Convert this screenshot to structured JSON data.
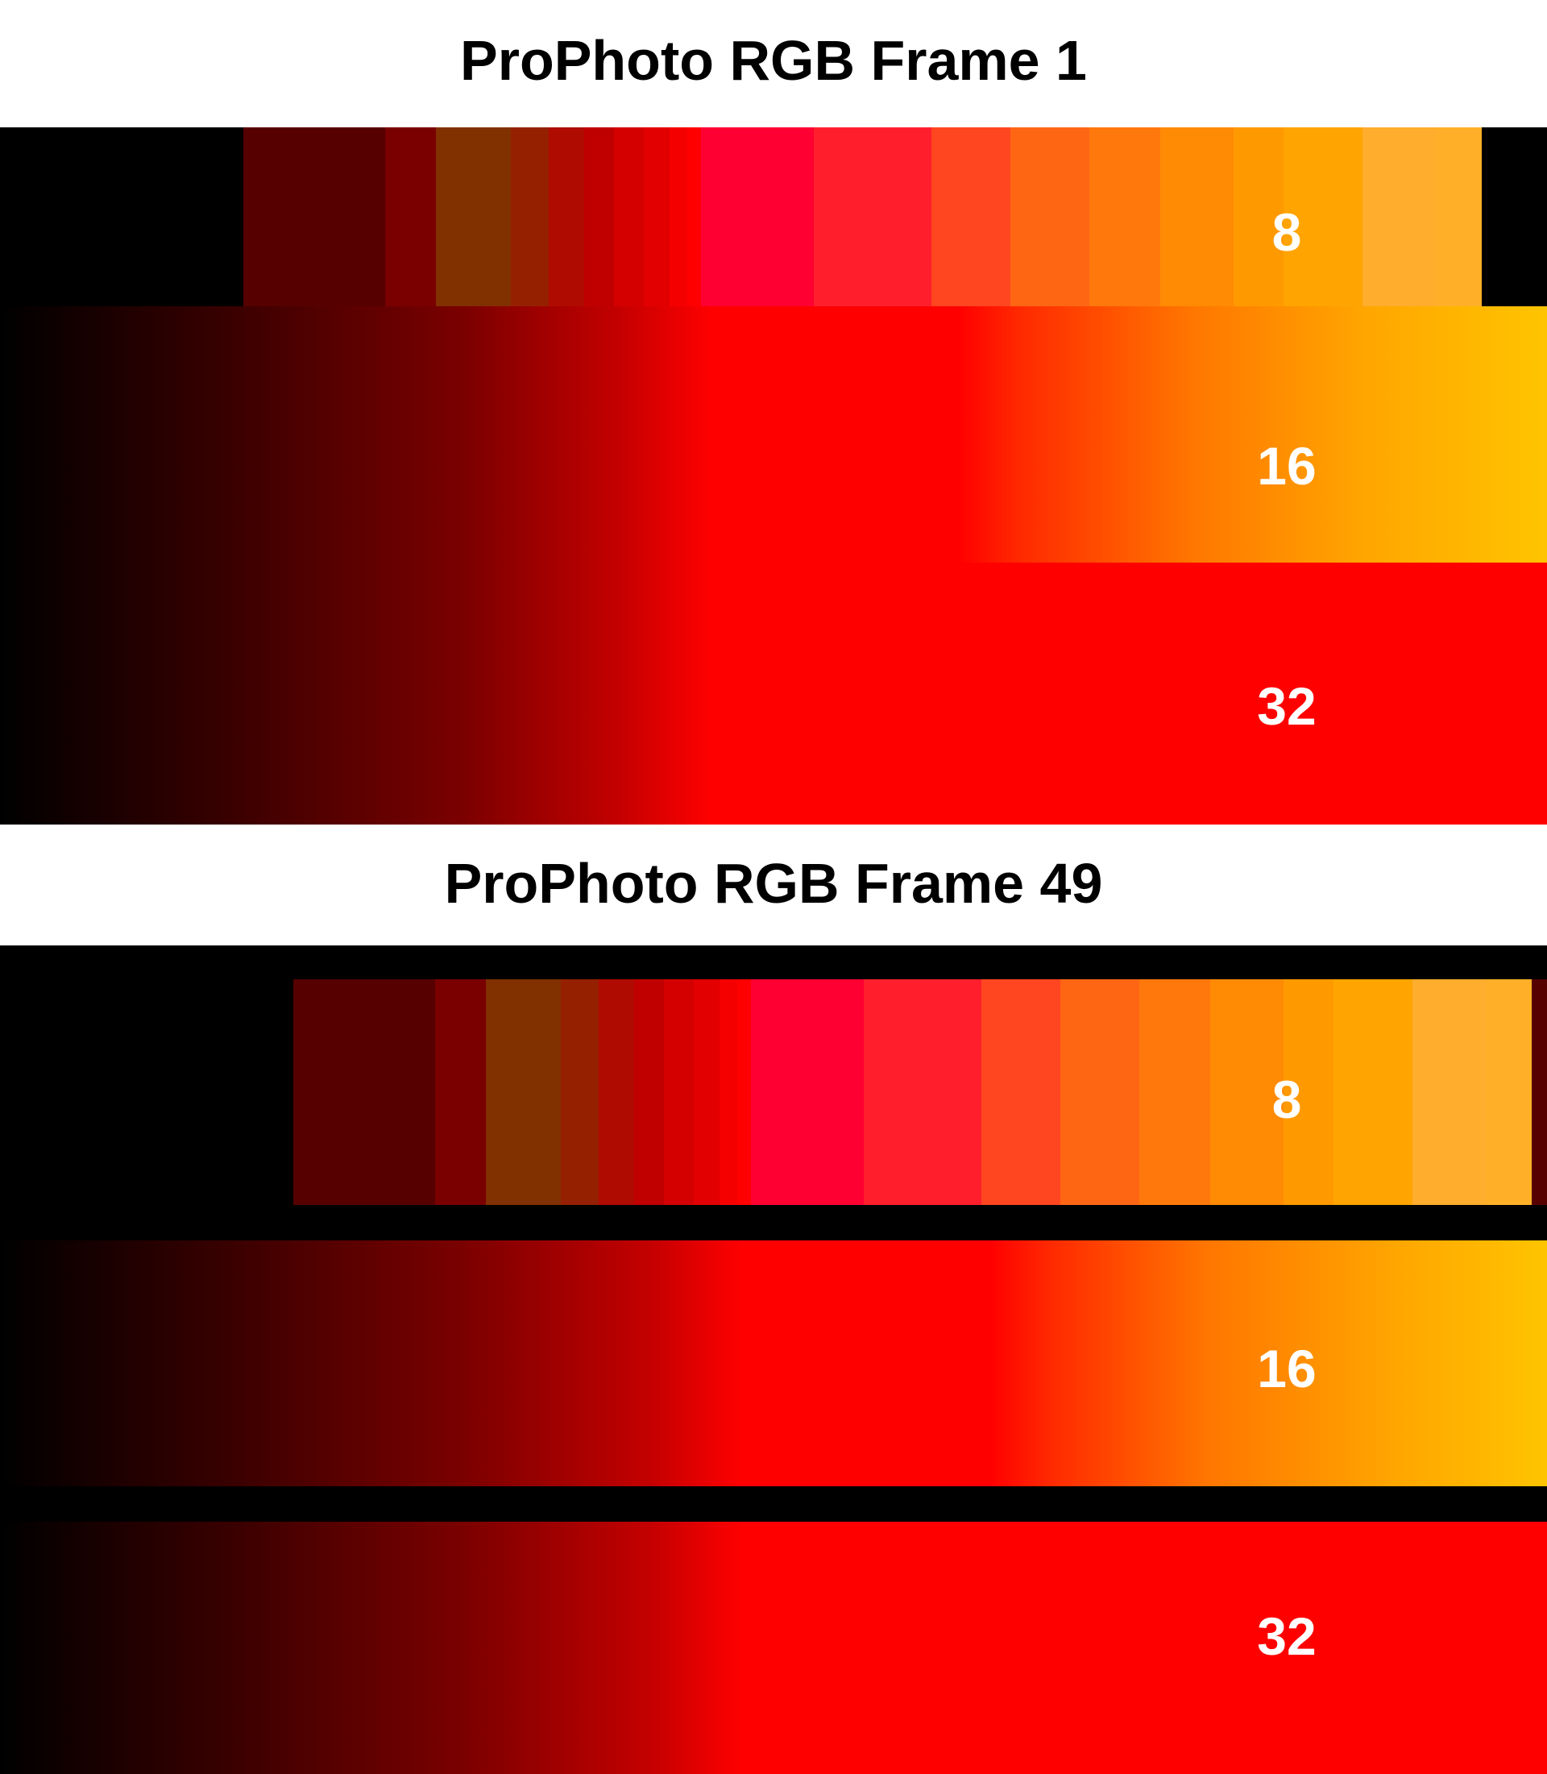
{
  "frames": [
    {
      "title": "ProPhoto RGB Frame 1",
      "labels": [
        "8",
        "16",
        "32"
      ]
    },
    {
      "title": "ProPhoto RGB Frame 49",
      "labels": [
        "8",
        "16",
        "32"
      ]
    }
  ],
  "colors": {
    "background": "#ffffff",
    "frame_bg": "#000000",
    "label_text": "#ffffff",
    "bands_8bit": [
      "#000000",
      "#560000",
      "#7a0000",
      "#813000",
      "#952000",
      "#b00b00",
      "#c00000",
      "#d40000",
      "#e20000",
      "#f50000",
      "#ff0000",
      "#ff0033",
      "#ff1f2c",
      "#ff4620",
      "#ff6614",
      "#ff780c",
      "#ff8a04",
      "#ff9900",
      "#ffa400",
      "#ffad2c",
      "#ffb028"
    ],
    "grad_16bit": [
      "#000000",
      "#3a0000",
      "#7b0000",
      "#c40000",
      "#ff0000",
      "#ff0000",
      "#ff2a00",
      "#ff7600",
      "#ffa500",
      "#ffc400"
    ],
    "grad_32bit": [
      "#000000",
      "#3a0000",
      "#7b0000",
      "#c40000",
      "#ff0000",
      "#ff0000"
    ]
  }
}
